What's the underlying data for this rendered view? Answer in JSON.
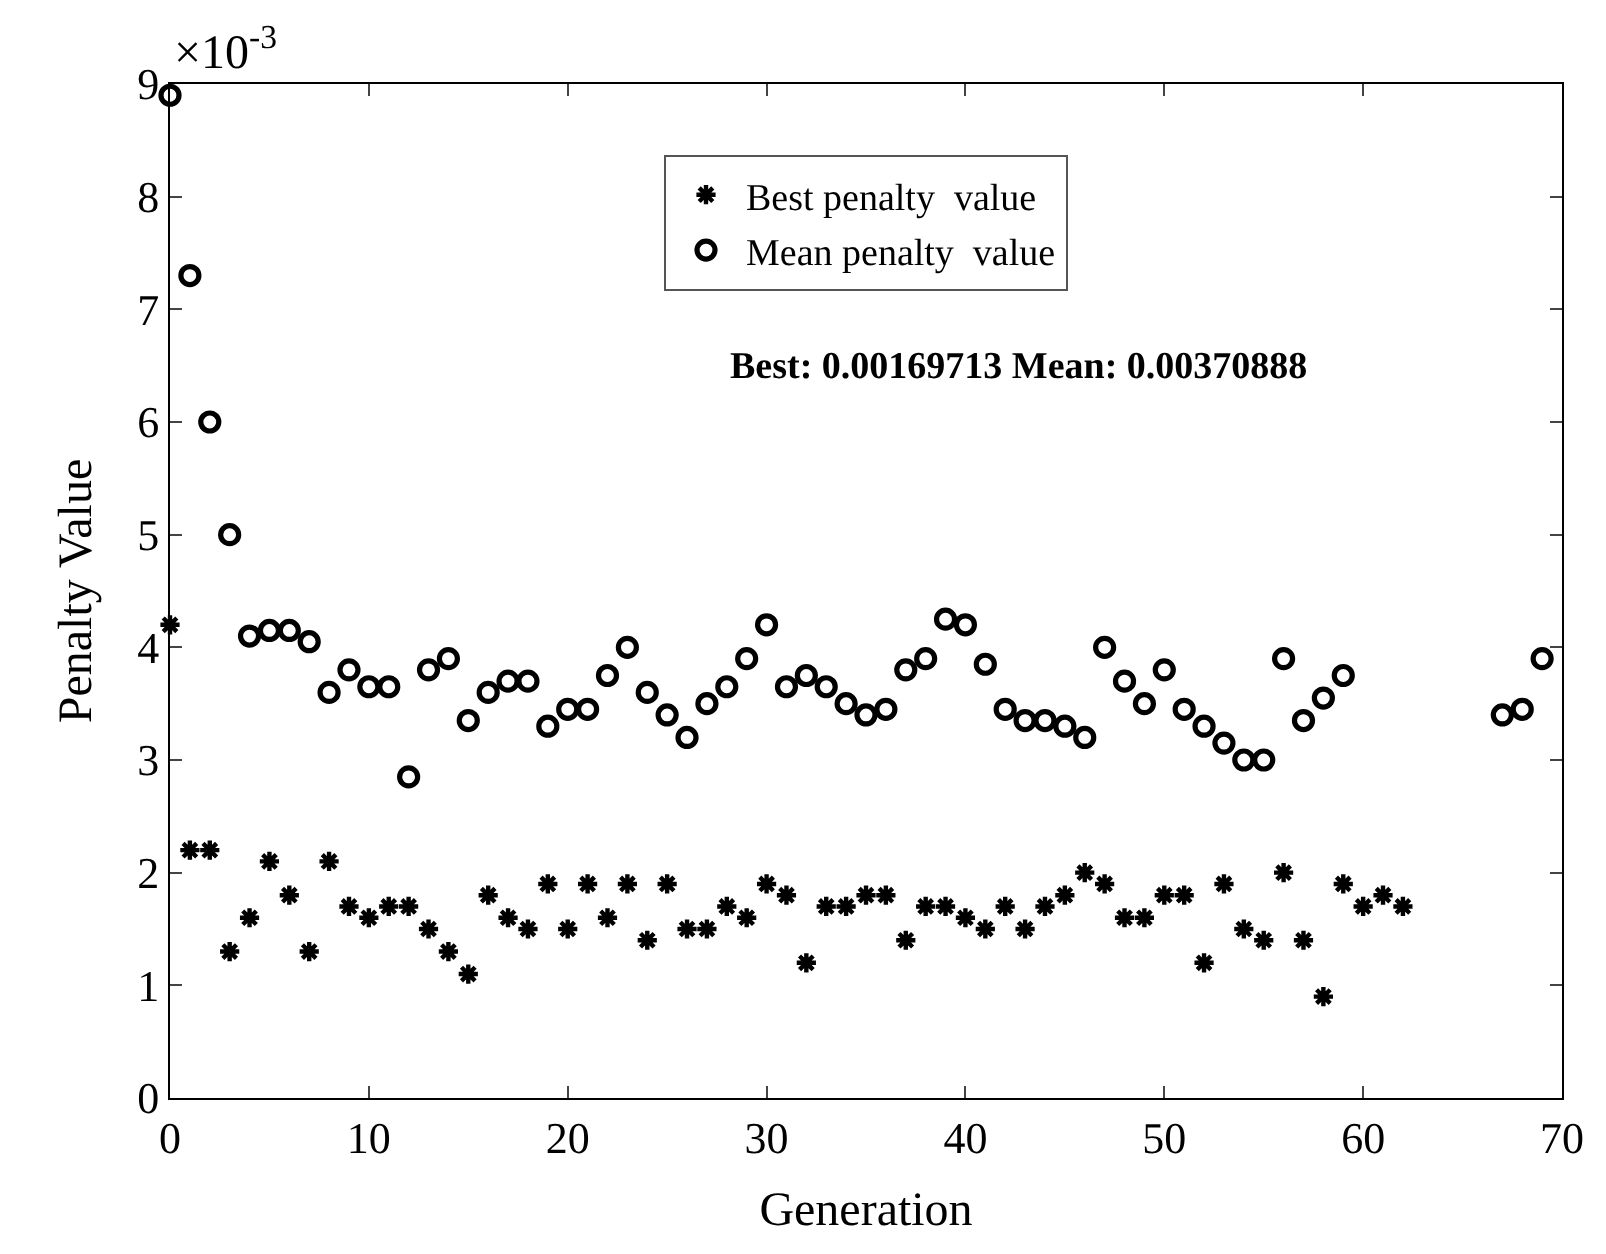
{
  "chart_data": {
    "type": "scatter",
    "xlabel": "Generation",
    "ylabel": "Penalty Value",
    "xlim": [
      0,
      70
    ],
    "xticks": [
      0,
      10,
      20,
      30,
      40,
      50,
      60,
      70
    ],
    "ylim": [
      0,
      9
    ],
    "yticks": [
      0,
      1,
      2,
      3,
      4,
      5,
      6,
      7,
      8,
      9
    ],
    "legend": "top",
    "annotations": [
      "×10$^{-3}$",
      "Best: 0.00169713 Mean: 0.00370888"
    ],
    "series": [
      {
        "name": "Best penalty  value",
        "color": "#000000",
        "marker": "cross",
        "x": [
          0,
          1,
          2,
          3,
          4,
          5,
          6,
          7,
          8,
          9,
          10,
          11,
          12,
          13,
          14,
          15,
          16,
          17,
          18,
          19,
          20,
          21,
          22,
          23,
          24,
          25,
          26,
          27,
          28,
          29,
          30,
          31,
          32,
          33,
          34,
          35,
          36,
          37,
          38,
          39,
          40,
          41,
          42,
          43,
          44,
          45,
          46,
          47,
          48,
          49,
          50,
          51,
          52,
          53,
          54,
          55,
          56,
          57,
          58,
          59,
          60,
          61,
          62
        ],
        "values": [
          4.2,
          2.2,
          2.2,
          1.3,
          1.6,
          2.1,
          1.8,
          1.3,
          2.1,
          1.7,
          1.6,
          1.7,
          1.7,
          1.5,
          1.3,
          1.1,
          1.8,
          1.6,
          1.5,
          1.9,
          1.5,
          1.9,
          1.6,
          1.9,
          1.4,
          1.9,
          1.5,
          1.5,
          1.7,
          1.6,
          1.9,
          1.8,
          1.2,
          1.7,
          1.7,
          1.8,
          1.8,
          1.4,
          1.7,
          1.7,
          1.6,
          1.5,
          1.7,
          1.5,
          1.7,
          1.8,
          2.0,
          1.9,
          1.6,
          1.6,
          1.8,
          1.8,
          1.2,
          1.9,
          1.5,
          1.4,
          2.0,
          1.4,
          0.9,
          1.9,
          1.7,
          1.8,
          1.7
        ]
      },
      {
        "name": "Mean penalty  value",
        "color": "#000000",
        "marker": "circle",
        "x": [
          0,
          1,
          2,
          3,
          4,
          5,
          6,
          7,
          8,
          9,
          10,
          11,
          12,
          13,
          14,
          15,
          16,
          17,
          18,
          19,
          20,
          21,
          22,
          23,
          24,
          25,
          26,
          27,
          28,
          29,
          30,
          31,
          32,
          33,
          34,
          35,
          36,
          37,
          38,
          39,
          40,
          41,
          42,
          43,
          44,
          45,
          46,
          47,
          48,
          49,
          50,
          51,
          52,
          53,
          54,
          55,
          56,
          57,
          58,
          59,
          67,
          68,
          69
        ],
        "values": [
          8.9,
          7.3,
          6.0,
          5.0,
          4.1,
          4.15,
          4.15,
          4.05,
          3.6,
          3.8,
          3.65,
          3.65,
          2.85,
          3.8,
          3.9,
          3.35,
          3.6,
          3.7,
          3.7,
          3.3,
          3.45,
          3.45,
          3.75,
          4.0,
          3.6,
          3.4,
          3.2,
          3.5,
          3.65,
          3.9,
          4.2,
          3.65,
          3.75,
          3.65,
          3.5,
          3.4,
          3.45,
          3.8,
          3.9,
          4.25,
          4.2,
          3.85,
          3.45,
          3.35,
          3.35,
          3.3,
          3.2,
          4.0,
          3.7,
          3.5,
          3.8,
          3.45,
          3.3,
          3.15,
          3.0,
          3.0,
          3.9,
          3.35,
          3.55,
          3.75,
          3.4,
          3.45,
          3.9
        ]
      }
    ]
  }
}
